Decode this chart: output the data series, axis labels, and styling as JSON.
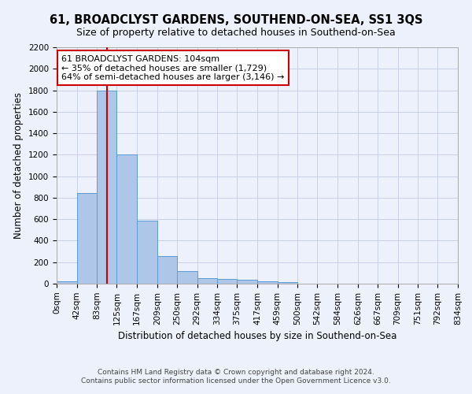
{
  "title": "61, BROADCLYST GARDENS, SOUTHEND-ON-SEA, SS1 3QS",
  "subtitle": "Size of property relative to detached houses in Southend-on-Sea",
  "xlabel": "Distribution of detached houses by size in Southend-on-Sea",
  "ylabel": "Number of detached properties",
  "footer_line1": "Contains HM Land Registry data © Crown copyright and database right 2024.",
  "footer_line2": "Contains public sector information licensed under the Open Government Licence v3.0.",
  "annotation_line1": "61 BROADCLYST GARDENS: 104sqm",
  "annotation_line2": "← 35% of detached houses are smaller (1,729)",
  "annotation_line3": "64% of semi-detached houses are larger (3,146) →",
  "property_size": 104,
  "bar_edges": [
    0,
    42,
    83,
    125,
    167,
    209,
    250,
    292,
    334,
    375,
    417,
    459,
    500,
    542,
    584,
    626,
    667,
    709,
    751,
    792,
    834
  ],
  "bar_heights": [
    25,
    840,
    1800,
    1200,
    590,
    260,
    115,
    50,
    45,
    35,
    25,
    15,
    0,
    0,
    0,
    0,
    0,
    0,
    0,
    0
  ],
  "bar_color": "#aec6e8",
  "bar_edge_color": "#5b9bd5",
  "red_line_color": "#cc0000",
  "annotation_box_color": "#cc0000",
  "background_color": "#edf1fb",
  "grid_color": "#c8d0e8",
  "ylim": [
    0,
    2200
  ],
  "yticks": [
    0,
    200,
    400,
    600,
    800,
    1000,
    1200,
    1400,
    1600,
    1800,
    2000,
    2200
  ],
  "title_fontsize": 10.5,
  "subtitle_fontsize": 9,
  "xlabel_fontsize": 8.5,
  "ylabel_fontsize": 8.5,
  "tick_fontsize": 7.5,
  "footer_fontsize": 6.5,
  "annotation_fontsize": 8
}
